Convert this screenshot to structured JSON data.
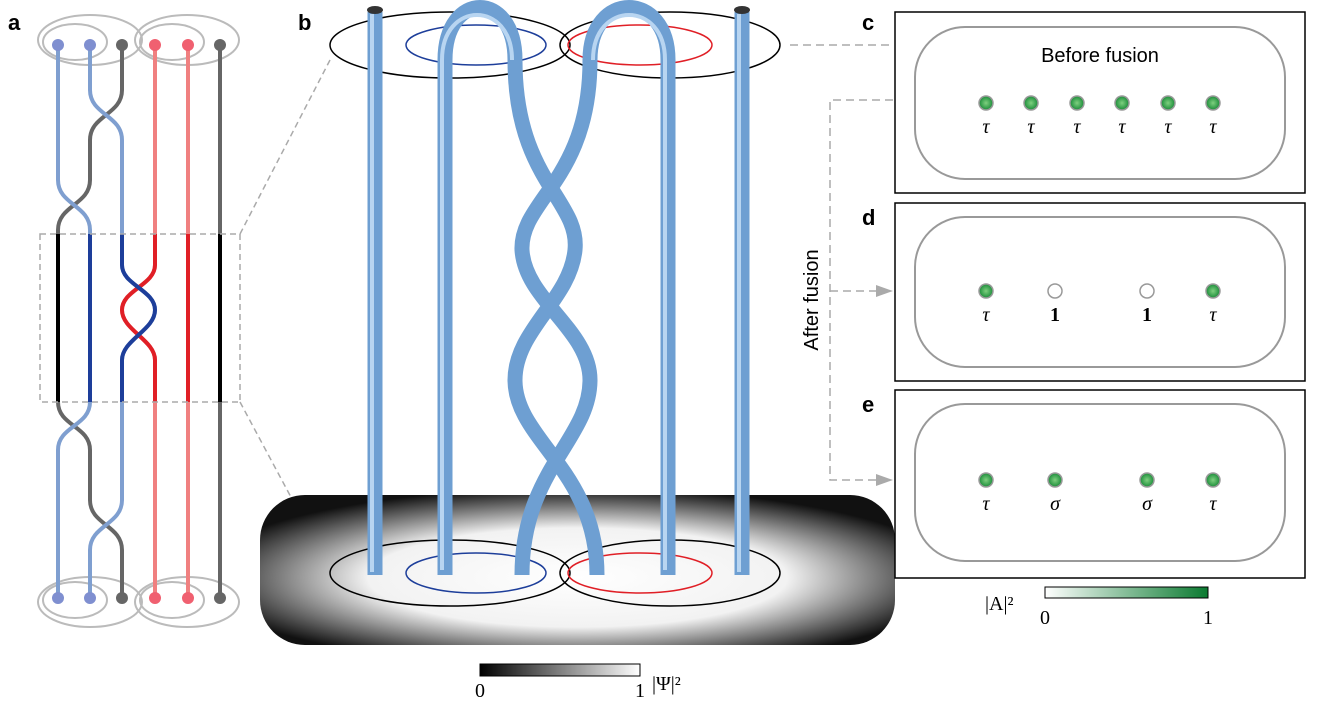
{
  "panel_a": {
    "label": "a"
  },
  "panel_b": {
    "label": "b"
  },
  "panel_c": {
    "label": "c",
    "title": "Before fusion",
    "anyons": [
      {
        "label": "τ",
        "filled": true
      },
      {
        "label": "τ",
        "filled": true
      },
      {
        "label": "τ",
        "filled": true
      },
      {
        "label": "τ",
        "filled": true
      },
      {
        "label": "τ",
        "filled": true
      },
      {
        "label": "τ",
        "filled": true
      }
    ]
  },
  "panel_d": {
    "label": "d",
    "anyons": [
      {
        "label": "τ",
        "filled": true
      },
      {
        "label": "1",
        "filled": false
      },
      {
        "label": "1",
        "filled": false
      },
      {
        "label": "τ",
        "filled": true
      }
    ]
  },
  "panel_e": {
    "label": "e",
    "anyons": [
      {
        "label": "τ",
        "filled": true
      },
      {
        "label": "σ",
        "filled": true
      },
      {
        "label": "σ",
        "filled": true
      },
      {
        "label": "τ",
        "filled": true
      }
    ]
  },
  "after_fusion_label": "After fusion",
  "psi_colorbar": {
    "label": "|Ψ|²",
    "min_label": "0",
    "max_label": "1"
  },
  "amplitude_colorbar": {
    "label": "|A|²",
    "min_label": "0",
    "max_label": "1"
  }
}
